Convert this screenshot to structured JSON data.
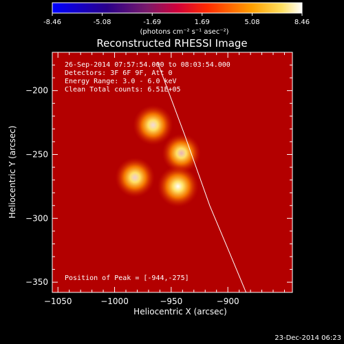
{
  "colors": {
    "background": "#000000",
    "axis": "#ffffff",
    "limb": "#ffffff"
  },
  "colorbar": {
    "ticks": [
      "-8.46",
      "-5.08",
      "-1.69",
      "1.69",
      "5.08",
      "8.46"
    ],
    "unit_label": "(photons cm⁻² s⁻¹ asec⁻²)",
    "range": [
      -8.46,
      8.46
    ]
  },
  "chart_data": {
    "type": "heatmap",
    "title": "Reconstructed RHESSI Image",
    "xlabel": "Heliocentric X (arcsec)",
    "ylabel": "Heliocentric Y (arcsec)",
    "xlim": [
      -1055,
      -843
    ],
    "ylim": [
      -358,
      -170
    ],
    "xticks": [
      -1050,
      -1000,
      -950,
      -900
    ],
    "yticks": [
      -200,
      -250,
      -300,
      -350
    ],
    "annotations": [
      "26-Sep-2014 07:57:54.000 to 08:03:54.000",
      "Detectors: 3F 6F 9F, Att 0",
      "Energy Range: 3.0 - 6.0 keV",
      "Clean    Total counts: 6.51E+05"
    ],
    "peak_label": "Position of Peak = [-944,-275]",
    "sources": [
      {
        "x": -966,
        "y": -227,
        "intensity": 0.85
      },
      {
        "x": -941,
        "y": -249,
        "intensity": 0.7
      },
      {
        "x": -982,
        "y": -268,
        "intensity": 0.8
      },
      {
        "x": -944,
        "y": -275,
        "intensity": 1.0
      }
    ],
    "limb_points": [
      [
        -962,
        -178
      ],
      [
        -938,
        -235
      ],
      [
        -916,
        -290
      ],
      [
        -898,
        -328
      ],
      [
        -883,
        -360
      ]
    ]
  },
  "footer": {
    "timestamp": "23-Dec-2014 06:23"
  }
}
